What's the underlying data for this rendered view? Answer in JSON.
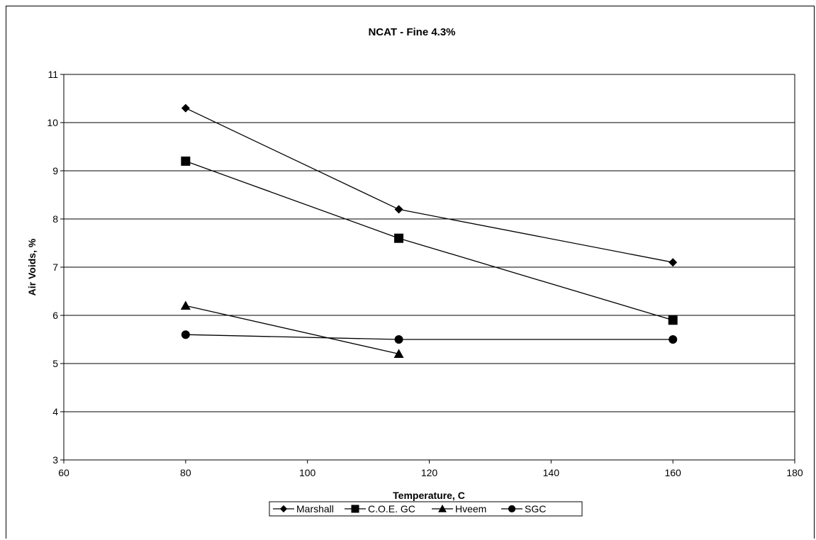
{
  "chart_data": {
    "type": "line",
    "title": "NCAT - Fine 4.3%",
    "xlabel": "Temperature, C",
    "ylabel": "Air Voids, %",
    "xlim": [
      60,
      180
    ],
    "ylim": [
      3,
      11
    ],
    "xticks": [
      60,
      80,
      100,
      120,
      140,
      160,
      180
    ],
    "yticks": [
      3,
      4,
      5,
      6,
      7,
      8,
      9,
      10,
      11
    ],
    "grid": "horizontal major",
    "legend_position": "bottom",
    "series": [
      {
        "name": "Marshall",
        "marker": "diamond",
        "x": [
          80,
          115,
          160
        ],
        "y": [
          10.3,
          8.2,
          7.1
        ]
      },
      {
        "name": "C.O.E. GC",
        "marker": "square",
        "x": [
          80,
          115,
          160
        ],
        "y": [
          9.2,
          7.6,
          5.9
        ]
      },
      {
        "name": "Hveem",
        "marker": "triangle",
        "x": [
          80,
          115
        ],
        "y": [
          6.2,
          5.2
        ]
      },
      {
        "name": "SGC",
        "marker": "circle",
        "x": [
          80,
          115,
          160
        ],
        "y": [
          5.6,
          5.5,
          5.5
        ]
      }
    ],
    "colors": {
      "line": "#000000",
      "marker": "#000000",
      "grid": "#000000",
      "background": "#ffffff"
    }
  }
}
